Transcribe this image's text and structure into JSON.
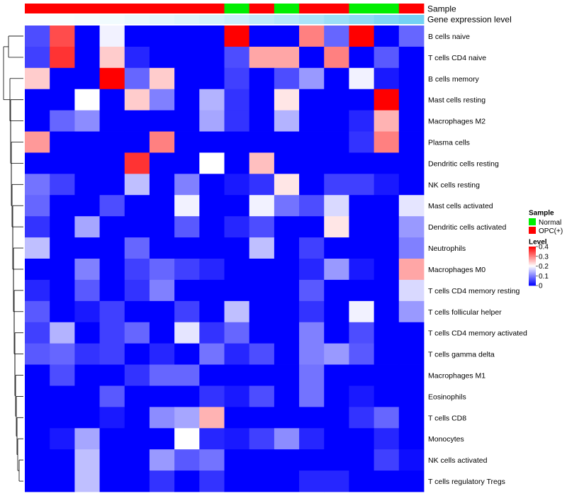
{
  "chart_data": {
    "type": "heatmap",
    "annotations": {
      "sample_label": "Sample",
      "expression_label": "Gene expression level",
      "sample": [
        "OPC(+)",
        "OPC(+)",
        "OPC(+)",
        "OPC(+)",
        "OPC(+)",
        "OPC(+)",
        "OPC(+)",
        "OPC(+)",
        "Normal",
        "OPC(+)",
        "Normal",
        "OPC(+)",
        "OPC(+)",
        "Normal",
        "Normal",
        "OPC(+)"
      ],
      "expression_level": [
        0.02,
        0.04,
        0.06,
        0.08,
        0.12,
        0.16,
        0.2,
        0.24,
        0.3,
        0.36,
        0.42,
        0.5,
        0.58,
        0.66,
        0.74,
        0.82
      ]
    },
    "rows": [
      "B cells naive",
      "T cells CD4 naive",
      "B cells memory",
      "Mast cells resting",
      "Macrophages M2",
      "Plasma cells",
      "Dendritic cells resting",
      "NK cells resting",
      "Mast cells activated",
      "Dendritic cells activated",
      "Neutrophils",
      "Macrophages M0",
      "T cells CD4 memory resting",
      "T cells follicular helper",
      "T cells CD4 memory activated",
      "T cells gamma delta",
      "Macrophages M1",
      "Eosinophils",
      "T cells CD8",
      "Monocytes",
      "NK cells activated",
      "T cells regulatory  Tregs"
    ],
    "values": [
      [
        0.06,
        0.34,
        0,
        0.19,
        0,
        0,
        0,
        0,
        0.4,
        0,
        0,
        0.3,
        0.08,
        0.4,
        0,
        0.08
      ],
      [
        0.05,
        0.36,
        0,
        0.24,
        0.03,
        0,
        0,
        0,
        0.06,
        0.27,
        0.27,
        0,
        0.3,
        0,
        0.07,
        0
      ],
      [
        0.24,
        0,
        0,
        0.4,
        0.08,
        0.24,
        0,
        0,
        0.05,
        0,
        0.06,
        0.12,
        0,
        0.19,
        0.02,
        0
      ],
      [
        0,
        0,
        0.2,
        0,
        0.24,
        0.1,
        0,
        0.14,
        0.04,
        0,
        0.22,
        0,
        0,
        0,
        0.4,
        0
      ],
      [
        0,
        0.08,
        0.11,
        0,
        0,
        0,
        0,
        0.13,
        0.04,
        0,
        0.14,
        0,
        0,
        0.03,
        0.26,
        0
      ],
      [
        0.28,
        0,
        0,
        0,
        0,
        0.3,
        0,
        0,
        0,
        0,
        0,
        0,
        0,
        0.04,
        0.3,
        0
      ],
      [
        0,
        0,
        0,
        0,
        0.36,
        0,
        0,
        0.2,
        0,
        0.25,
        0,
        0,
        0,
        0,
        0,
        0
      ],
      [
        0.09,
        0.05,
        0,
        0,
        0.15,
        0,
        0.1,
        0,
        0.02,
        0.04,
        0.22,
        0,
        0.05,
        0.05,
        0.02,
        0
      ],
      [
        0.08,
        0,
        0,
        0.06,
        0,
        0,
        0.19,
        0,
        0,
        0.19,
        0.09,
        0.06,
        0.17,
        0,
        0,
        0.18
      ],
      [
        0.04,
        0,
        0.13,
        0,
        0,
        0,
        0.07,
        0,
        0.03,
        0.06,
        0,
        0,
        0.22,
        0,
        0,
        0.12
      ],
      [
        0.15,
        0,
        0,
        0,
        0.08,
        0,
        0,
        0,
        0,
        0.15,
        0,
        0.05,
        0,
        0,
        0,
        0.1
      ],
      [
        0,
        0,
        0.1,
        0,
        0.05,
        0.08,
        0.05,
        0.03,
        0,
        0,
        0,
        0.03,
        0.12,
        0.02,
        0,
        0.27
      ],
      [
        0.03,
        0,
        0.07,
        0,
        0.04,
        0.1,
        0,
        0,
        0,
        0,
        0,
        0.07,
        0,
        0,
        0,
        0.17
      ],
      [
        0.07,
        0,
        0.02,
        0.05,
        0,
        0,
        0.05,
        0,
        0.15,
        0,
        0,
        0.04,
        0,
        0.19,
        0,
        0.12
      ],
      [
        0.05,
        0.14,
        0,
        0.05,
        0.08,
        0,
        0.18,
        0.04,
        0.08,
        0,
        0,
        0.1,
        0,
        0.06,
        0,
        0
      ],
      [
        0.07,
        0.08,
        0.04,
        0.05,
        0,
        0.03,
        0,
        0.09,
        0.03,
        0.06,
        0,
        0.1,
        0.12,
        0.07,
        0,
        0
      ],
      [
        0,
        0.06,
        0,
        0,
        0.04,
        0.08,
        0.08,
        0,
        0,
        0,
        0,
        0.09,
        0,
        0,
        0,
        0
      ],
      [
        0,
        0,
        0,
        0.07,
        0,
        0,
        0,
        0.04,
        0.02,
        0.06,
        0,
        0.09,
        0,
        0.02,
        0,
        0
      ],
      [
        0,
        0,
        0,
        0.02,
        0,
        0.11,
        0.13,
        0.26,
        0,
        0,
        0,
        0,
        0,
        0.04,
        0.08,
        0
      ],
      [
        0,
        0.02,
        0.13,
        0,
        0,
        0,
        0.2,
        0.03,
        0.02,
        0.05,
        0.11,
        0.03,
        0,
        0,
        0.03,
        0
      ],
      [
        0,
        0,
        0.15,
        0,
        0,
        0.12,
        0.07,
        0.09,
        0,
        0,
        0,
        0,
        0,
        0,
        0.05,
        0.01
      ],
      [
        0,
        0,
        0.15,
        0,
        0,
        0.04,
        0,
        0.04,
        0,
        0,
        0,
        0.03,
        0.03,
        0,
        0,
        0
      ]
    ],
    "legend": {
      "sample_title": "Sample",
      "sample_entries": [
        {
          "label": "Normal",
          "color": "#00ee00"
        },
        {
          "label": "OPC(+)",
          "color": "#ff0000"
        }
      ],
      "level_title": "Level",
      "level_ticks": [
        "0.4",
        "0.3",
        "0.2",
        "0.1",
        "0"
      ],
      "level_tick_values": [
        0.4,
        0.3,
        0.2,
        0.1,
        0
      ]
    },
    "color_scale": {
      "low": "#0000ff",
      "mid": "#ffffff",
      "high": "#ff0000",
      "min": 0,
      "mid_value": 0.2,
      "max": 0.4
    },
    "expression_scale": {
      "low": "#ffffff",
      "high": "#54c8f2"
    }
  }
}
